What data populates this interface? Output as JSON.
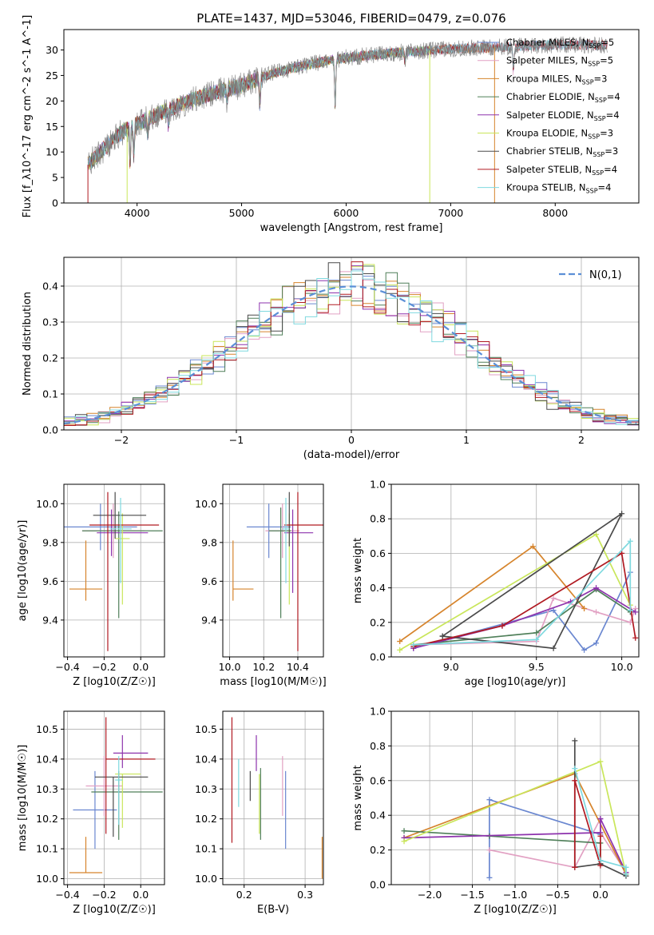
{
  "figure": {
    "title": "PLATE=1437, MJD=53046, FIBERID=0479, z=0.076",
    "colors": [
      "#6a87d0",
      "#e2a1c3",
      "#d6842c",
      "#4f7f59",
      "#8d33ad",
      "#c9e65a",
      "#4a4a4a",
      "#b01a22",
      "#7fd9df"
    ]
  },
  "chart_data": [
    {
      "id": "spectrum",
      "type": "line",
      "xlabel": "wavelength [Angstrom, rest frame]",
      "ylabel": "Flux [f_λ10^-17 erg cm^-2 s^-1 A^-1]",
      "xlim": [
        3300,
        8800
      ],
      "ylim": [
        0,
        34
      ],
      "xticks": [
        4000,
        5000,
        6000,
        7000,
        8000
      ],
      "yticks": [
        0,
        5,
        10,
        15,
        20,
        25,
        30
      ],
      "legend_position": "right",
      "observed_color": "#808080",
      "continuum_profile": [
        [
          3530,
          7.5
        ],
        [
          3700,
          11
        ],
        [
          3800,
          13
        ],
        [
          3900,
          14.5
        ],
        [
          4000,
          15.5
        ],
        [
          4200,
          17.5
        ],
        [
          4500,
          20
        ],
        [
          4800,
          22
        ],
        [
          5000,
          23
        ],
        [
          5300,
          25.5
        ],
        [
          5600,
          27
        ],
        [
          6000,
          28.5
        ],
        [
          6500,
          29.5
        ],
        [
          7000,
          30.2
        ],
        [
          7400,
          30.5
        ],
        [
          8000,
          31
        ],
        [
          8500,
          31
        ]
      ],
      "absorption_lines": [
        {
          "wave": 3934,
          "depth": 7
        },
        {
          "wave": 3969,
          "depth": 6
        },
        {
          "wave": 4102,
          "depth": 3
        },
        {
          "wave": 4300,
          "depth": 3
        },
        {
          "wave": 4861,
          "depth": 2.5
        },
        {
          "wave": 5175,
          "depth": 5
        },
        {
          "wave": 5895,
          "depth": 9
        },
        {
          "wave": 6563,
          "depth": 2
        },
        {
          "wave": 7600,
          "depth": 5
        }
      ],
      "model_truncations": [
        {
          "series": "Salpeter STELIB",
          "wave": 3530
        },
        {
          "series": "Kroupa MILES",
          "wave": 7420
        },
        {
          "series": "Kroupa ELODIE",
          "wave": 3905
        },
        {
          "series": "Kroupa ELODIE",
          "wave": 6800
        }
      ],
      "series": [
        {
          "name": "Chabrier MILES",
          "nssp": "5",
          "color": "#6a87d0",
          "end": 8500
        },
        {
          "name": "Salpeter MILES",
          "nssp": "5",
          "color": "#e2a1c3",
          "end": 8500
        },
        {
          "name": "Kroupa MILES",
          "nssp": "3",
          "color": "#d6842c",
          "end": 7420
        },
        {
          "name": "Chabrier ELODIE",
          "nssp": "4",
          "color": "#4f7f59",
          "end": 6800
        },
        {
          "name": "Salpeter ELODIE",
          "nssp": "4",
          "color": "#8d33ad",
          "end": 6800
        },
        {
          "name": "Kroupa ELODIE",
          "nssp": "3",
          "color": "#c9e65a",
          "end": 6800
        },
        {
          "name": "Chabrier STELIB",
          "nssp": "3",
          "color": "#4a4a4a",
          "end": 8500
        },
        {
          "name": "Salpeter STELIB",
          "nssp": "4",
          "color": "#b01a22",
          "end": 8500
        },
        {
          "name": "Kroupa STELIB",
          "nssp": "4",
          "color": "#7fd9df",
          "end": 8500
        }
      ]
    },
    {
      "id": "residuals",
      "type": "line",
      "xlabel": "(data-model)/error",
      "ylabel": "Normed distribution",
      "xlim": [
        -2.5,
        2.5
      ],
      "ylim": [
        0,
        0.48
      ],
      "xticks": [
        -2,
        -1,
        0,
        1,
        2
      ],
      "yticks": [
        0.0,
        0.1,
        0.2,
        0.3,
        0.4
      ],
      "grid": true,
      "bin_width": 0.1,
      "reference_curve": {
        "name": "N(0,1)",
        "color": "#5b8fd6",
        "style": "dashed"
      },
      "legend_position": "top-right"
    },
    {
      "id": "age_vs_Z",
      "type": "scatter",
      "xlabel": "Z [log10(Z/Z☉)]",
      "ylabel": "age  [log10(age/yr)]",
      "xlim": [
        -0.42,
        0.13
      ],
      "ylim": [
        9.21,
        10.1
      ],
      "xticks": [
        -0.4,
        -0.2,
        0.0
      ],
      "yticks": [
        9.4,
        9.6,
        9.8,
        10.0
      ],
      "grid": true,
      "points": [
        {
          "series": "Chabrier MILES",
          "x": -0.22,
          "y": 9.88,
          "xerr": [
            0.2,
            0.2
          ],
          "yerr": [
            0.12,
            0.12
          ]
        },
        {
          "series": "Salpeter MILES",
          "x": -0.15,
          "y": 9.86,
          "xerr": [
            0.17,
            0.17
          ],
          "yerr": [
            0.14,
            0.14
          ]
        },
        {
          "series": "Kroupa MILES",
          "x": -0.3,
          "y": 9.56,
          "xerr": [
            0.09,
            0.09
          ],
          "yerr": [
            0.06,
            0.25
          ]
        },
        {
          "series": "Chabrier ELODIE",
          "x": -0.12,
          "y": 9.86,
          "xerr": [
            0.2,
            0.24
          ],
          "yerr": [
            0.45,
            0.1
          ]
        },
        {
          "series": "Salpeter ELODIE",
          "x": -0.16,
          "y": 9.85,
          "xerr": [
            0.08,
            0.2
          ],
          "yerr": [
            0.12,
            0.12
          ]
        },
        {
          "series": "Kroupa ELODIE",
          "x": -0.1,
          "y": 9.82,
          "xerr": [
            0.04,
            0.04
          ],
          "yerr": [
            0.34,
            0.13
          ]
        },
        {
          "series": "Chabrier STELIB",
          "x": -0.14,
          "y": 9.94,
          "xerr": [
            0.12,
            0.17
          ],
          "yerr": [
            0.12,
            0.12
          ]
        },
        {
          "series": "Salpeter STELIB",
          "x": -0.18,
          "y": 9.89,
          "xerr": [
            0.1,
            0.28
          ],
          "yerr": [
            0.65,
            0.17
          ]
        },
        {
          "series": "Kroupa STELIB",
          "x": -0.11,
          "y": 9.87,
          "xerr": [
            0.06,
            0.06
          ],
          "yerr": [
            0.28,
            0.16
          ]
        }
      ]
    },
    {
      "id": "age_vs_mass",
      "type": "scatter",
      "xlabel": "mass [log10(M/M☉)]",
      "ylabel": "",
      "xlim": [
        9.96,
        10.55
      ],
      "ylim": [
        9.21,
        10.1
      ],
      "xticks": [
        10.0,
        10.2,
        10.4
      ],
      "yticks": [
        9.4,
        9.6,
        9.8,
        10.0
      ],
      "grid": true,
      "points": [
        {
          "series": "Chabrier MILES",
          "x": 10.23,
          "y": 9.88,
          "xerr": [
            0.13,
            0.13
          ],
          "yerr": [
            0.16,
            0.12
          ]
        },
        {
          "series": "Salpeter MILES",
          "x": 10.31,
          "y": 9.86,
          "xerr": [
            0.1,
            0.1
          ],
          "yerr": [
            0.14,
            0.14
          ]
        },
        {
          "series": "Kroupa MILES",
          "x": 10.02,
          "y": 9.56,
          "xerr": [
            0.0,
            0.12
          ],
          "yerr": [
            0.06,
            0.25
          ]
        },
        {
          "series": "Chabrier ELODIE",
          "x": 10.3,
          "y": 9.86,
          "xerr": [
            0.07,
            0.06
          ],
          "yerr": [
            0.45,
            0.12
          ]
        },
        {
          "series": "Salpeter ELODIE",
          "x": 10.37,
          "y": 9.85,
          "xerr": [
            0.05,
            0.12
          ],
          "yerr": [
            0.31,
            0.12
          ]
        },
        {
          "series": "Kroupa ELODIE",
          "x": 10.35,
          "y": 9.82,
          "xerr": [
            0.0,
            0.0
          ],
          "yerr": [
            0.34,
            0.13
          ]
        },
        {
          "series": "Chabrier STELIB",
          "x": 10.35,
          "y": 9.94,
          "xerr": [
            0.0,
            0.0
          ],
          "yerr": [
            0.16,
            0.12
          ]
        },
        {
          "series": "Salpeter STELIB",
          "x": 10.4,
          "y": 9.89,
          "xerr": [
            0.08,
            0.15
          ],
          "yerr": [
            0.65,
            0.17
          ]
        },
        {
          "series": "Kroupa STELIB",
          "x": 10.33,
          "y": 9.87,
          "xerr": [
            0.02,
            0.02
          ],
          "yerr": [
            0.28,
            0.16
          ]
        }
      ]
    },
    {
      "id": "mass_weight_vs_age",
      "type": "line",
      "xlabel": "age  [log10(age/yr)]",
      "ylabel": "mass weight",
      "xlim": [
        8.65,
        10.1
      ],
      "ylim": [
        0,
        1.0
      ],
      "xticks": [
        9.0,
        9.5,
        10.0
      ],
      "yticks": [
        0.0,
        0.2,
        0.4,
        0.6,
        0.8,
        1.0
      ],
      "grid": true,
      "series": [
        {
          "name": "Chabrier MILES",
          "x": [
            8.78,
            9.6,
            9.78,
            9.85,
            10.05
          ],
          "y": [
            0.05,
            0.27,
            0.04,
            0.08,
            0.49
          ]
        },
        {
          "name": "Salpeter MILES",
          "x": [
            8.78,
            9.5,
            9.6,
            9.85,
            10.05,
            10.08
          ],
          "y": [
            0.07,
            0.09,
            0.34,
            0.26,
            0.2,
            0.28
          ]
        },
        {
          "name": "Kroupa MILES",
          "x": [
            8.7,
            9.48,
            9.78
          ],
          "y": [
            0.09,
            0.64,
            0.28
          ]
        },
        {
          "name": "Chabrier ELODIE",
          "x": [
            8.78,
            9.5,
            9.85,
            10.05
          ],
          "y": [
            0.07,
            0.14,
            0.39,
            0.26
          ]
        },
        {
          "name": "Salpeter ELODIE",
          "x": [
            8.78,
            9.3,
            9.7,
            9.85,
            10.08
          ],
          "y": [
            0.05,
            0.18,
            0.32,
            0.4,
            0.26
          ]
        },
        {
          "name": "Kroupa ELODIE",
          "x": [
            8.7,
            9.85,
            10.05
          ],
          "y": [
            0.04,
            0.71,
            0.3
          ]
        },
        {
          "name": "Chabrier STELIB",
          "x": [
            8.95,
            9.6,
            10.0,
            8.95
          ],
          "y": [
            0.12,
            0.05,
            0.83,
            0.12
          ]
        },
        {
          "name": "Salpeter STELIB",
          "x": [
            8.78,
            9.3,
            10.0,
            10.08
          ],
          "y": [
            0.06,
            0.18,
            0.6,
            0.11
          ]
        },
        {
          "name": "Kroupa STELIB",
          "x": [
            8.78,
            9.5,
            10.05,
            10.05
          ],
          "y": [
            0.07,
            0.1,
            0.67,
            0.27
          ]
        }
      ]
    },
    {
      "id": "mass_vs_Z",
      "type": "scatter",
      "xlabel": "Z [log10(Z/Z☉)]",
      "ylabel": "mass [log10(M/M☉)]",
      "xlim": [
        -0.42,
        0.13
      ],
      "ylim": [
        9.98,
        10.56
      ],
      "xticks": [
        -0.4,
        -0.2,
        0.0
      ],
      "yticks": [
        10.0,
        10.1,
        10.2,
        10.3,
        10.4,
        10.5
      ],
      "grid": true,
      "points": [
        {
          "series": "Chabrier MILES",
          "x": -0.25,
          "y": 10.23,
          "xerr": [
            0.12,
            0.12
          ],
          "yerr": [
            0.13,
            0.13
          ]
        },
        {
          "series": "Salpeter MILES",
          "x": -0.2,
          "y": 10.31,
          "xerr": [
            0.1,
            0.1
          ],
          "yerr": [
            0.1,
            0.1
          ]
        },
        {
          "series": "Kroupa MILES",
          "x": -0.3,
          "y": 10.02,
          "xerr": [
            0.09,
            0.09
          ],
          "yerr": [
            0.0,
            0.12
          ]
        },
        {
          "series": "Chabrier ELODIE",
          "x": -0.12,
          "y": 10.29,
          "xerr": [
            0.15,
            0.24
          ],
          "yerr": [
            0.16,
            0.07
          ]
        },
        {
          "series": "Salpeter ELODIE",
          "x": -0.1,
          "y": 10.42,
          "xerr": [
            0.05,
            0.14
          ],
          "yerr": [
            0.05,
            0.06
          ]
        },
        {
          "series": "Kroupa ELODIE",
          "x": -0.1,
          "y": 10.35,
          "xerr": [
            0.04,
            0.1
          ],
          "yerr": [
            0.18,
            0.0
          ]
        },
        {
          "series": "Chabrier STELIB",
          "x": -0.15,
          "y": 10.34,
          "xerr": [
            0.1,
            0.19
          ],
          "yerr": [
            0.2,
            0.0
          ]
        },
        {
          "series": "Salpeter STELIB",
          "x": -0.19,
          "y": 10.4,
          "xerr": [
            0.0,
            0.27
          ],
          "yerr": [
            0.25,
            0.14
          ]
        },
        {
          "series": "Kroupa STELIB",
          "x": -0.12,
          "y": 10.33,
          "xerr": [
            0.02,
            0.02
          ],
          "yerr": [
            0.15,
            0.08
          ]
        }
      ]
    },
    {
      "id": "mass_vs_ebv",
      "type": "scatter",
      "xlabel": "E(B-V)",
      "ylabel": "",
      "xlim": [
        0.165,
        0.33
      ],
      "ylim": [
        9.98,
        10.56
      ],
      "xticks": [
        0.2,
        0.3
      ],
      "yticks": [
        10.0,
        10.1,
        10.2,
        10.3,
        10.4,
        10.5
      ],
      "grid": true,
      "points": [
        {
          "series": "Chabrier MILES",
          "x": 0.268,
          "y": 10.23,
          "yerr": [
            0.13,
            0.13
          ]
        },
        {
          "series": "Salpeter MILES",
          "x": 0.263,
          "y": 10.31,
          "yerr": [
            0.1,
            0.1
          ]
        },
        {
          "series": "Kroupa MILES",
          "x": 0.328,
          "y": 10.07,
          "yerr": [
            0.07,
            0.07
          ]
        },
        {
          "series": "Chabrier ELODIE",
          "x": 0.227,
          "y": 10.25,
          "yerr": [
            0.12,
            0.12
          ]
        },
        {
          "series": "Salpeter ELODIE",
          "x": 0.22,
          "y": 10.42,
          "yerr": [
            0.06,
            0.06
          ]
        },
        {
          "series": "Kroupa ELODIE",
          "x": 0.225,
          "y": 10.35,
          "yerr": [
            0.2,
            0.0
          ]
        },
        {
          "series": "Chabrier STELIB",
          "x": 0.21,
          "y": 10.31,
          "yerr": [
            0.05,
            0.05
          ]
        },
        {
          "series": "Salpeter STELIB",
          "x": 0.18,
          "y": 10.33,
          "yerr": [
            0.21,
            0.21
          ]
        },
        {
          "series": "Kroupa STELIB",
          "x": 0.191,
          "y": 10.32,
          "yerr": [
            0.08,
            0.08
          ]
        }
      ]
    },
    {
      "id": "mass_weight_vs_Z",
      "type": "line",
      "xlabel": "Z [log10(Z/Z☉)]",
      "ylabel": "mass weight",
      "xlim": [
        -2.45,
        0.45
      ],
      "ylim": [
        0,
        1.0
      ],
      "xticks": [
        -2.0,
        -1.5,
        -1.0,
        -0.5,
        0.0
      ],
      "yticks": [
        0.0,
        0.2,
        0.4,
        0.6,
        0.8,
        1.0
      ],
      "grid": true,
      "series": [
        {
          "name": "Chabrier MILES",
          "x": [
            -1.3,
            -1.3,
            -1.3,
            0.0,
            0.0
          ],
          "y": [
            0.04,
            0.28,
            0.49,
            0.29,
            0.38
          ]
        },
        {
          "name": "Salpeter MILES",
          "x": [
            -1.3,
            -0.3,
            0.0,
            0.0,
            0.3
          ],
          "y": [
            0.2,
            0.1,
            0.38,
            0.3,
            0.07
          ]
        },
        {
          "name": "Kroupa MILES",
          "x": [
            -2.3,
            -0.3,
            0.3
          ],
          "y": [
            0.27,
            0.64,
            0.06
          ]
        },
        {
          "name": "Chabrier ELODIE",
          "x": [
            -2.3,
            -1.3,
            0.0,
            0.0
          ],
          "y": [
            0.31,
            0.28,
            0.24,
            0.12
          ]
        },
        {
          "name": "Salpeter ELODIE",
          "x": [
            -2.3,
            0.0,
            0.0,
            0.3
          ],
          "y": [
            0.27,
            0.3,
            0.38,
            0.07
          ]
        },
        {
          "name": "Kroupa ELODIE",
          "x": [
            -2.3,
            0.0,
            0.3
          ],
          "y": [
            0.25,
            0.71,
            0.06
          ]
        },
        {
          "name": "Chabrier STELIB",
          "x": [
            -0.3,
            -0.3,
            0.0,
            0.3
          ],
          "y": [
            0.83,
            0.1,
            0.12,
            0.05
          ]
        },
        {
          "name": "Salpeter STELIB",
          "x": [
            -0.3,
            -0.3,
            0.0,
            0.0
          ],
          "y": [
            0.1,
            0.6,
            0.11,
            0.28
          ]
        },
        {
          "name": "Kroupa STELIB",
          "x": [
            -0.3,
            0.0,
            0.3,
            0.3
          ],
          "y": [
            0.67,
            0.14,
            0.1,
            0.06
          ]
        }
      ]
    }
  ]
}
